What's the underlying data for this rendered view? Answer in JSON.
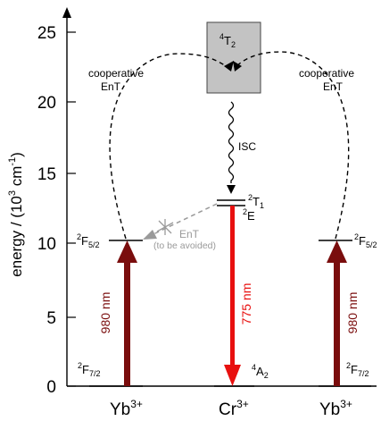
{
  "axis": {
    "ylabel_pre": "energy / (10",
    "ylabel_exp": "3",
    "ylabel_mid": " cm",
    "ylabel_exp2": "-1",
    "ylabel_post": ")",
    "ticks": [
      "0",
      "5",
      "10",
      "15",
      "20",
      "25"
    ]
  },
  "ions": {
    "left": {
      "base": "Yb",
      "charge": "3+"
    },
    "center": {
      "base": "Cr",
      "charge": "3+"
    },
    "right": {
      "base": "Yb",
      "charge": "3+"
    }
  },
  "states": {
    "yb_ground": {
      "sup": "2",
      "base": "F",
      "sub": "7/2"
    },
    "yb_excited": {
      "sup": "2",
      "base": "F",
      "sub": "5/2"
    },
    "cr_ground": {
      "sup": "4",
      "base": "A",
      "sub": "2"
    },
    "cr_t1": {
      "sup": "2",
      "base": "T",
      "sub": "1"
    },
    "cr_e": {
      "sup": "2",
      "base": "E"
    },
    "cr_t2": {
      "sup": "4",
      "base": "T",
      "sub": "2"
    }
  },
  "labels": {
    "coop_left_1": "cooperative",
    "coop_left_2": "EnT",
    "coop_right_1": "cooperative",
    "coop_right_2": "EnT",
    "isc": "ISC",
    "ent_avoid_1": "EnT",
    "ent_avoid_2": "(to be avoided)",
    "abs_left": "980 nm",
    "emission": "775 nm",
    "abs_right": "980 nm"
  },
  "colors": {
    "absorption": "#7a0d0d",
    "emission": "#e8100f",
    "t2_box": "#c3c3c3",
    "avoided": "#9a9a9a"
  }
}
